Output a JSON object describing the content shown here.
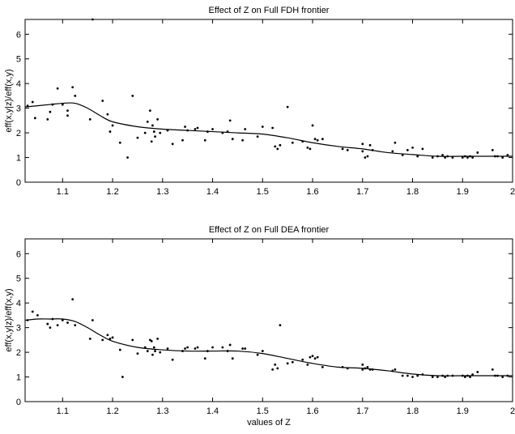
{
  "chart_data": [
    {
      "type": "scatter",
      "title": "Effect of Z on Full FDH frontier",
      "xlabel": "",
      "ylabel": "eff(x,y|z)/eff(x,y)",
      "xlim": [
        1.025,
        2.0
      ],
      "ylim": [
        0,
        6.6
      ],
      "xticks": [
        1.1,
        1.2,
        1.3,
        1.4,
        1.5,
        1.6,
        1.7,
        1.8,
        1.9,
        2
      ],
      "xtick_labels": [
        "1.1",
        "1.2",
        "1.3",
        "1.4",
        "1.5",
        "1.6",
        "1.7",
        "1.8",
        "1.9",
        "2"
      ],
      "yticks": [
        0,
        1,
        2,
        3,
        4,
        5,
        6
      ],
      "ytick_labels": [
        "0",
        "1",
        "2",
        "3",
        "4",
        "5",
        "6"
      ],
      "grid": false,
      "series": [
        {
          "kind": "points",
          "x": [
            1.03,
            1.04,
            1.045,
            1.07,
            1.075,
            1.08,
            1.09,
            1.1,
            1.11,
            1.11,
            1.12,
            1.125,
            1.155,
            1.16,
            1.18,
            1.19,
            1.195,
            1.2,
            1.215,
            1.23,
            1.24,
            1.25,
            1.265,
            1.27,
            1.275,
            1.278,
            1.28,
            1.283,
            1.285,
            1.29,
            1.295,
            1.31,
            1.32,
            1.34,
            1.345,
            1.35,
            1.365,
            1.37,
            1.385,
            1.39,
            1.4,
            1.42,
            1.43,
            1.435,
            1.44,
            1.46,
            1.465,
            1.49,
            1.5,
            1.52,
            1.525,
            1.53,
            1.535,
            1.55,
            1.56,
            1.58,
            1.59,
            1.595,
            1.6,
            1.605,
            1.61,
            1.62,
            1.66,
            1.67,
            1.7,
            1.7,
            1.705,
            1.71,
            1.715,
            1.72,
            1.76,
            1.765,
            1.78,
            1.79,
            1.8,
            1.81,
            1.82,
            1.84,
            1.85,
            1.86,
            1.865,
            1.87,
            1.88,
            1.9,
            1.905,
            1.91,
            1.915,
            1.92,
            1.93,
            1.96,
            1.965,
            1.97,
            1.98,
            1.99
          ],
          "y": [
            3.1,
            3.25,
            2.6,
            2.55,
            2.85,
            3.15,
            3.8,
            3.15,
            2.7,
            2.9,
            3.85,
            3.5,
            2.55,
            6.6,
            3.3,
            2.75,
            2.05,
            2.3,
            1.6,
            1.0,
            3.5,
            1.8,
            2.0,
            2.45,
            2.9,
            1.65,
            2.3,
            2.05,
            1.85,
            2.55,
            2.0,
            2.1,
            1.55,
            1.7,
            2.25,
            2.1,
            2.15,
            2.2,
            1.7,
            2.05,
            2.15,
            2.0,
            2.05,
            2.5,
            1.75,
            1.7,
            2.15,
            1.85,
            2.25,
            2.2,
            1.45,
            1.35,
            1.5,
            3.05,
            1.6,
            1.65,
            1.4,
            1.35,
            2.3,
            1.75,
            1.7,
            1.75,
            1.35,
            1.3,
            1.25,
            1.55,
            1.0,
            1.05,
            1.5,
            1.3,
            1.25,
            1.6,
            1.1,
            1.3,
            1.4,
            1.05,
            1.35,
            1.0,
            1.05,
            1.1,
            1.0,
            1.05,
            1.0,
            1.0,
            1.05,
            1.0,
            1.05,
            1.0,
            1.2,
            1.3,
            1.05,
            1.05,
            1.0,
            1.1
          ]
        },
        {
          "kind": "smooth-line",
          "x": [
            1.025,
            1.05,
            1.075,
            1.1,
            1.125,
            1.15,
            1.175,
            1.2,
            1.25,
            1.3,
            1.35,
            1.4,
            1.45,
            1.5,
            1.55,
            1.6,
            1.65,
            1.7,
            1.75,
            1.8,
            1.85,
            1.9,
            1.95,
            2.0
          ],
          "y": [
            3.05,
            3.1,
            3.15,
            3.2,
            3.2,
            3.0,
            2.7,
            2.45,
            2.25,
            2.15,
            2.1,
            2.05,
            2.0,
            1.95,
            1.8,
            1.6,
            1.45,
            1.35,
            1.2,
            1.12,
            1.05,
            1.05,
            1.05,
            1.05
          ]
        }
      ]
    },
    {
      "type": "scatter",
      "title": "Effect of Z on Full DEA frontier",
      "xlabel": "values of Z",
      "ylabel": "eff(x,y|z)/eff(x,y)",
      "xlim": [
        1.025,
        2.0
      ],
      "ylim": [
        0,
        6.6
      ],
      "xticks": [
        1.1,
        1.2,
        1.3,
        1.4,
        1.5,
        1.6,
        1.7,
        1.8,
        1.9,
        2
      ],
      "xtick_labels": [
        "1.1",
        "1.2",
        "1.3",
        "1.4",
        "1.5",
        "1.6",
        "1.7",
        "1.8",
        "1.9",
        "2"
      ],
      "yticks": [
        0,
        1,
        2,
        3,
        4,
        5,
        6
      ],
      "ytick_labels": [
        "0",
        "1",
        "2",
        "3",
        "4",
        "5",
        "6"
      ],
      "grid": false,
      "series": [
        {
          "kind": "points",
          "x": [
            1.03,
            1.04,
            1.05,
            1.07,
            1.075,
            1.08,
            1.09,
            1.1,
            1.11,
            1.12,
            1.125,
            1.155,
            1.16,
            1.18,
            1.19,
            1.195,
            1.2,
            1.215,
            1.22,
            1.24,
            1.25,
            1.265,
            1.27,
            1.275,
            1.278,
            1.28,
            1.283,
            1.285,
            1.29,
            1.295,
            1.31,
            1.32,
            1.34,
            1.345,
            1.35,
            1.365,
            1.37,
            1.385,
            1.39,
            1.4,
            1.42,
            1.43,
            1.435,
            1.44,
            1.46,
            1.465,
            1.49,
            1.5,
            1.52,
            1.525,
            1.53,
            1.535,
            1.55,
            1.56,
            1.58,
            1.59,
            1.595,
            1.6,
            1.605,
            1.61,
            1.62,
            1.66,
            1.67,
            1.7,
            1.7,
            1.705,
            1.71,
            1.715,
            1.72,
            1.76,
            1.765,
            1.78,
            1.79,
            1.8,
            1.81,
            1.82,
            1.84,
            1.85,
            1.86,
            1.865,
            1.87,
            1.88,
            1.9,
            1.905,
            1.91,
            1.915,
            1.92,
            1.93,
            1.96,
            1.965,
            1.97,
            1.98,
            1.99
          ],
          "y": [
            3.3,
            3.65,
            3.5,
            3.15,
            3.0,
            3.35,
            3.1,
            3.3,
            3.2,
            4.15,
            3.1,
            2.55,
            3.3,
            2.5,
            2.7,
            2.55,
            2.6,
            2.1,
            1.0,
            2.5,
            1.95,
            2.2,
            2.05,
            2.5,
            2.45,
            1.9,
            2.2,
            2.05,
            2.55,
            2.0,
            2.15,
            1.7,
            2.05,
            2.15,
            2.2,
            2.15,
            2.2,
            1.75,
            2.05,
            2.2,
            2.2,
            2.05,
            2.3,
            1.75,
            2.15,
            2.15,
            1.9,
            2.05,
            1.3,
            1.5,
            1.35,
            3.1,
            1.55,
            1.6,
            1.7,
            1.5,
            1.8,
            1.85,
            1.75,
            1.8,
            1.4,
            1.4,
            1.35,
            1.3,
            1.5,
            1.35,
            1.4,
            1.3,
            1.3,
            1.25,
            1.3,
            1.05,
            1.05,
            1.0,
            1.05,
            1.1,
            1.0,
            1.0,
            1.05,
            1.0,
            1.05,
            1.05,
            1.05,
            1.0,
            1.05,
            1.0,
            1.1,
            1.2,
            1.3,
            1.05,
            1.05,
            1.0,
            1.05
          ]
        },
        {
          "kind": "smooth-line",
          "x": [
            1.025,
            1.05,
            1.075,
            1.1,
            1.125,
            1.15,
            1.175,
            1.2,
            1.25,
            1.3,
            1.35,
            1.4,
            1.45,
            1.5,
            1.55,
            1.6,
            1.65,
            1.7,
            1.75,
            1.8,
            1.85,
            1.9,
            1.95,
            2.0
          ],
          "y": [
            3.3,
            3.35,
            3.35,
            3.35,
            3.25,
            3.0,
            2.7,
            2.45,
            2.2,
            2.1,
            2.05,
            2.05,
            2.05,
            1.95,
            1.75,
            1.55,
            1.4,
            1.35,
            1.25,
            1.12,
            1.05,
            1.05,
            1.05,
            1.05
          ]
        }
      ]
    }
  ]
}
